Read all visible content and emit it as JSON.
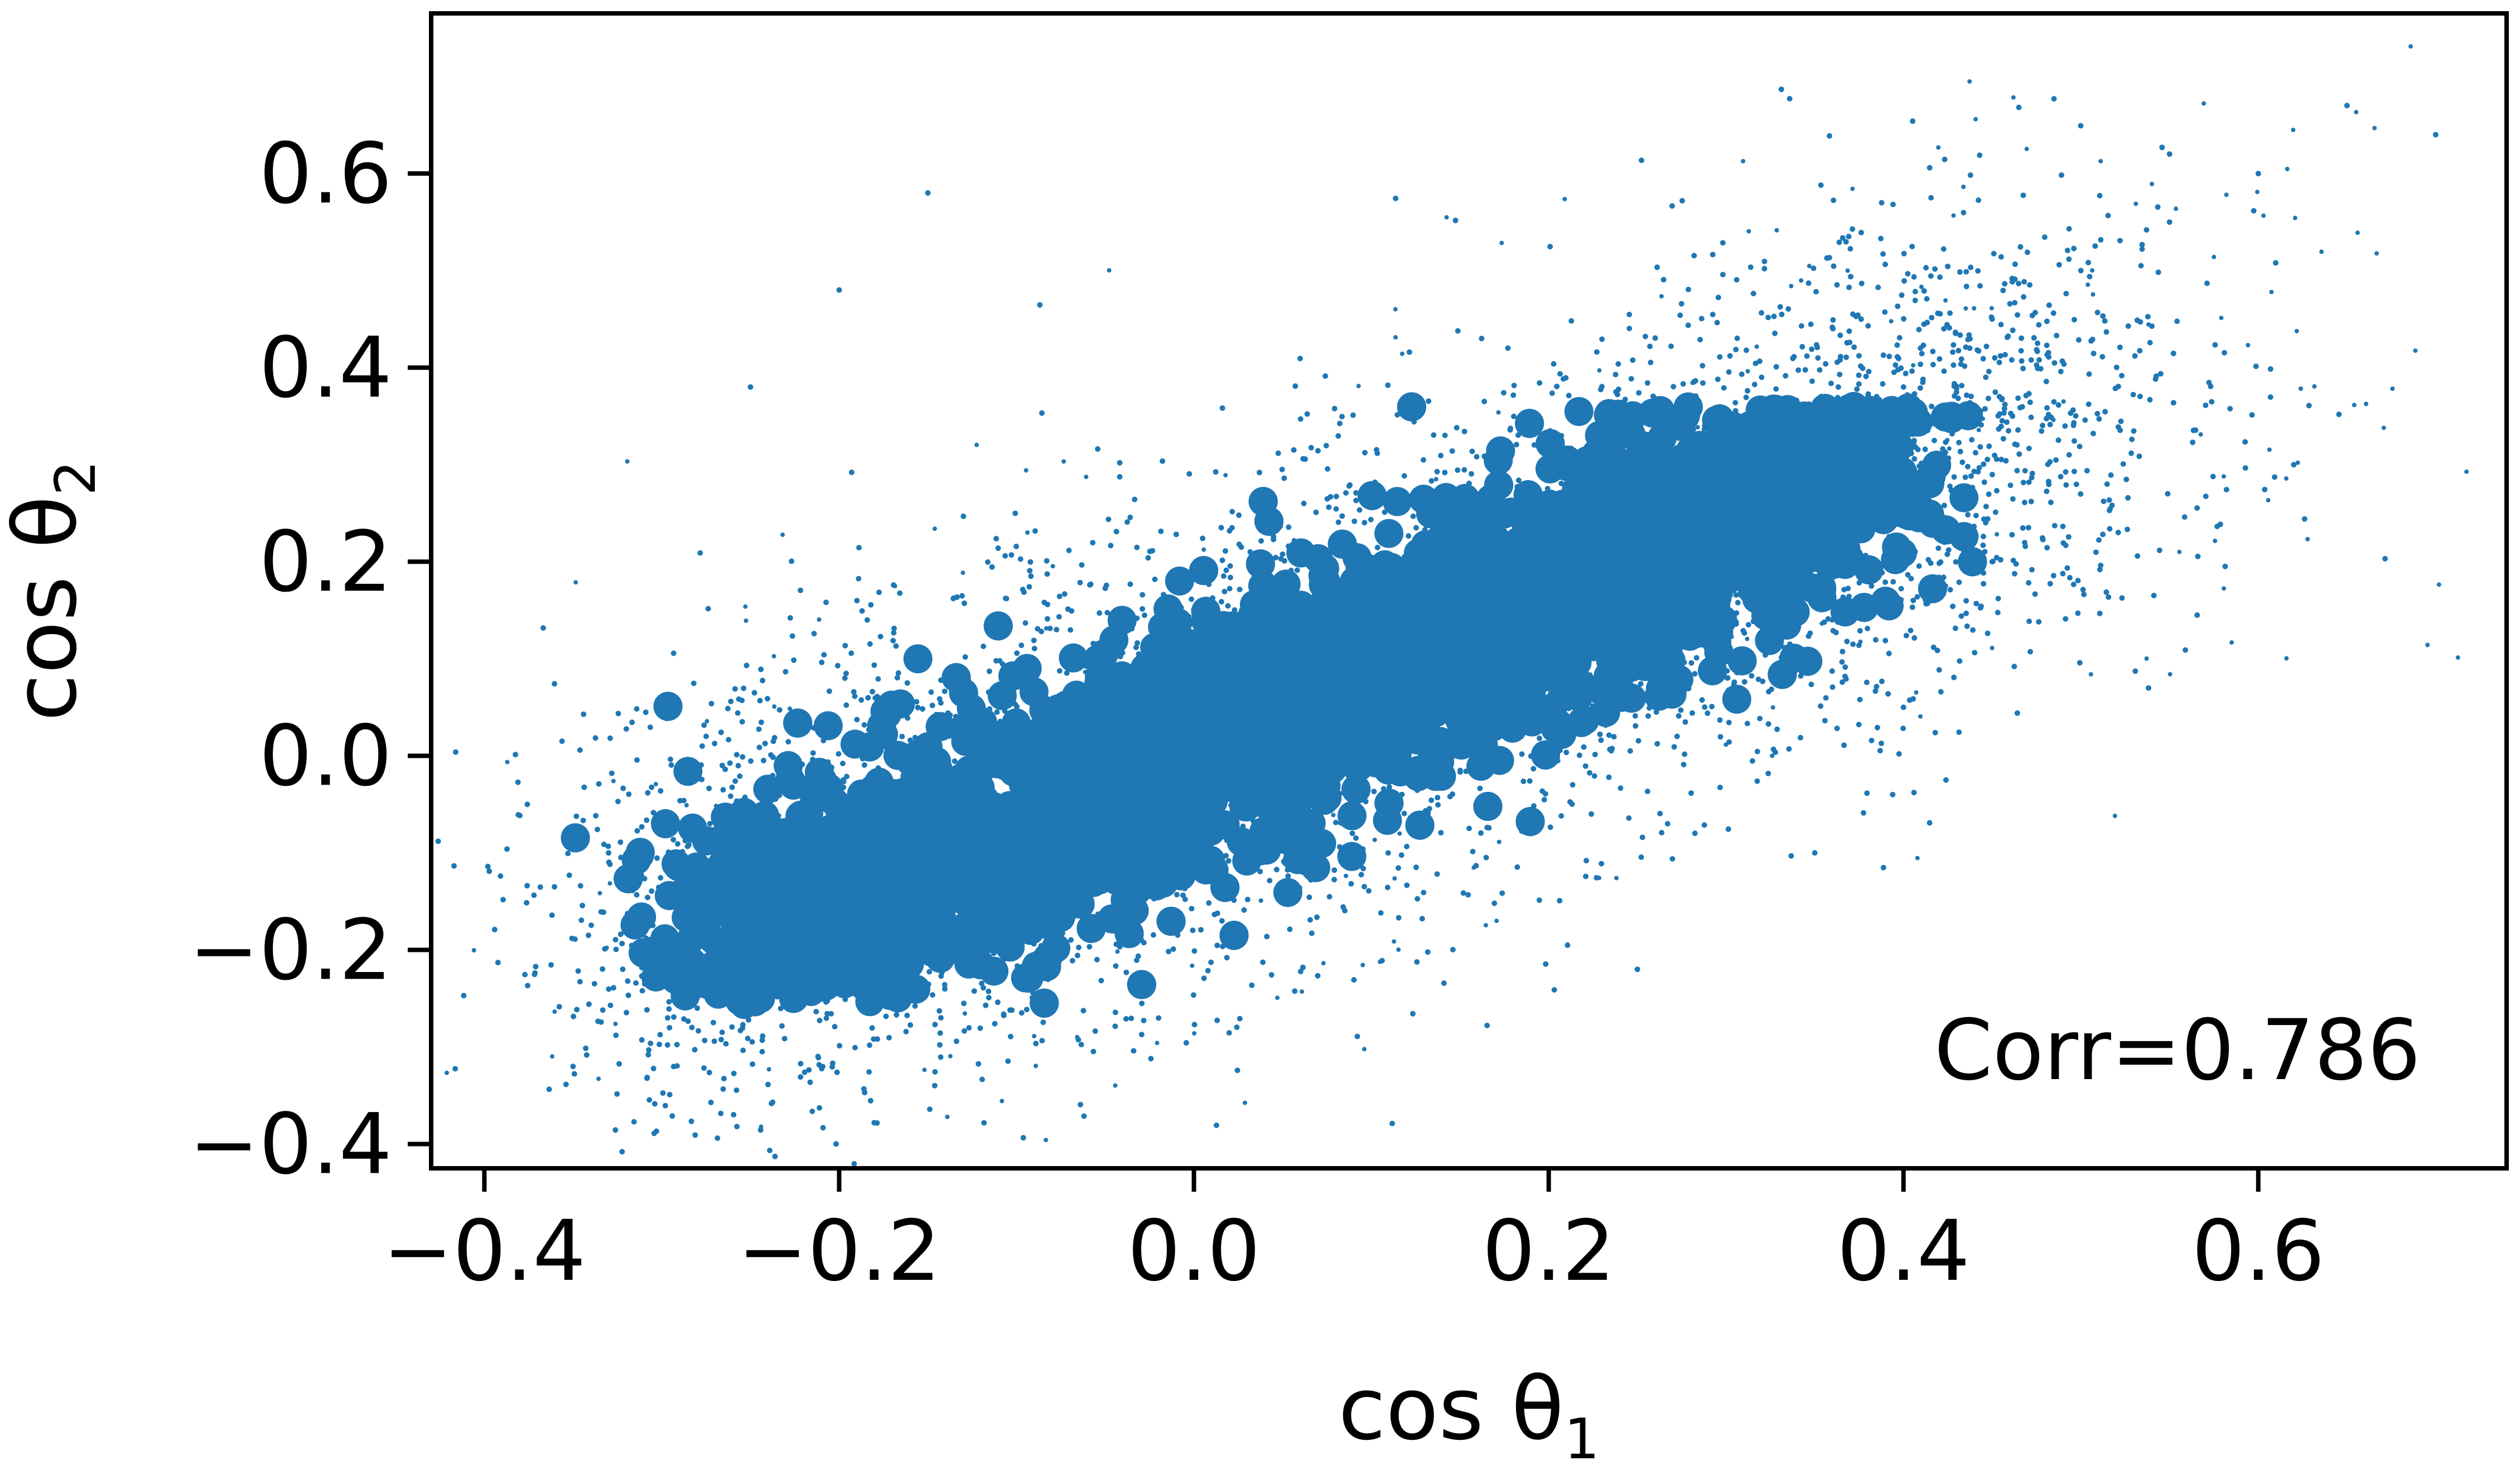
{
  "chart_data": {
    "type": "scatter",
    "title": "",
    "xlabel": {
      "base": "cos θ",
      "sub": "1"
    },
    "ylabel": {
      "base": "cos θ",
      "sub": "2"
    },
    "xlim": [
      -0.43,
      0.74
    ],
    "ylim": [
      -0.425,
      0.765
    ],
    "xticks": [
      -0.4,
      -0.2,
      0.0,
      0.2,
      0.4,
      0.6
    ],
    "xtick_labels": [
      "−0.4",
      "−0.2",
      "0.0",
      "0.2",
      "0.4",
      "0.6"
    ],
    "yticks": [
      -0.4,
      -0.2,
      0.0,
      0.2,
      0.4,
      0.6
    ],
    "ytick_labels": [
      "−0.4",
      "−0.2",
      "0.0",
      "0.2",
      "0.4",
      "0.6"
    ],
    "grid": false,
    "legend": "none",
    "color": "#1f77b4",
    "annotation": "Corr=0.786",
    "statistics": {
      "correlation": 0.786
    },
    "series": [
      {
        "points": [
          [
            -0.28,
            -0.26
          ],
          [
            -0.25,
            -0.22
          ],
          [
            -0.22,
            -0.24
          ],
          [
            -0.2,
            -0.15
          ],
          [
            -0.18,
            -0.2
          ],
          [
            -0.15,
            -0.1
          ],
          [
            -0.12,
            -0.14
          ],
          [
            -0.1,
            -0.05
          ],
          [
            -0.08,
            -0.1
          ],
          [
            -0.05,
            0.0
          ],
          [
            -0.03,
            -0.05
          ],
          [
            0.0,
            0.02
          ],
          [
            0.02,
            -0.02
          ],
          [
            0.05,
            0.06
          ],
          [
            0.08,
            0.03
          ],
          [
            0.1,
            0.1
          ],
          [
            0.12,
            0.07
          ],
          [
            0.15,
            0.14
          ],
          [
            0.18,
            0.1
          ],
          [
            0.2,
            0.18
          ],
          [
            0.22,
            0.15
          ],
          [
            0.25,
            0.22
          ],
          [
            0.28,
            0.2
          ],
          [
            0.3,
            0.28
          ],
          [
            0.32,
            0.3
          ],
          [
            0.35,
            0.33
          ],
          [
            0.38,
            0.37
          ],
          [
            0.4,
            0.38
          ],
          [
            0.45,
            0.45
          ],
          [
            0.5,
            0.5
          ],
          [
            0.55,
            0.55
          ],
          [
            0.6,
            0.6
          ],
          [
            0.65,
            0.67
          ],
          [
            0.7,
            0.64
          ],
          [
            -0.35,
            -0.32
          ],
          [
            -0.33,
            -0.1
          ],
          [
            -0.25,
            0.38
          ],
          [
            -0.2,
            0.48
          ],
          [
            0.25,
            -0.22
          ],
          [
            0.35,
            -0.1
          ],
          [
            0.4,
            0.05
          ],
          [
            0.45,
            0.2
          ],
          [
            -0.15,
            0.58
          ],
          [
            0.55,
            0.62
          ],
          [
            0.62,
            0.3
          ]
        ]
      }
    ]
  }
}
